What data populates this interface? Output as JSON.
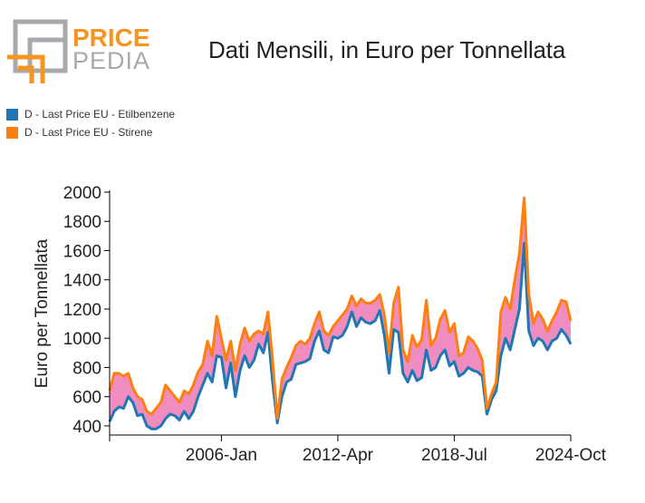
{
  "header": {
    "logo_word1": "PRICE",
    "logo_word2": "PEDIA",
    "title": "Dati Mensili, in Euro per Tonnellata"
  },
  "colors": {
    "etilbenzene": "#1f77b4",
    "stirene": "#ff7f0e",
    "spread_fill": "#f08cc0",
    "logo_gray": "#a7a9ac",
    "logo_orange": "#f7941d"
  },
  "legend": [
    {
      "label": "D - Last Price EU - Etilbenzene",
      "color": "#1f77b4"
    },
    {
      "label": "D - Last Price EU - Stirene",
      "color": "#ff7f0e"
    }
  ],
  "chart_data": {
    "type": "line",
    "title": "Dati Mensili, in Euro per Tonnellata",
    "xlabel": "",
    "ylabel": "Euro per Tonnellata",
    "x_start": "2000-01",
    "x_end": "2024-10",
    "xticks": [
      {
        "date": "2000-01",
        "label": ""
      },
      {
        "date": "2006-01",
        "label": "2006-Jan"
      },
      {
        "date": "2012-04",
        "label": "2012-Apr"
      },
      {
        "date": "2018-07",
        "label": "2018-Jul"
      },
      {
        "date": "2024-10",
        "label": "2024-Oct"
      }
    ],
    "ylim": [
      350,
      2000
    ],
    "yticks": [
      400,
      600,
      800,
      1000,
      1200,
      1400,
      1600,
      1800,
      2000
    ],
    "grid": false,
    "legend_position": "top-left",
    "fill_between": true,
    "series": [
      {
        "name": "D - Last Price EU - Etilbenzene",
        "color": "#1f77b4",
        "points": [
          [
            "2000-01",
            430
          ],
          [
            "2000-04",
            500
          ],
          [
            "2000-07",
            530
          ],
          [
            "2000-10",
            520
          ],
          [
            "2001-01",
            600
          ],
          [
            "2001-04",
            560
          ],
          [
            "2001-07",
            470
          ],
          [
            "2001-10",
            480
          ],
          [
            "2002-01",
            400
          ],
          [
            "2002-04",
            380
          ],
          [
            "2002-07",
            380
          ],
          [
            "2002-10",
            400
          ],
          [
            "2003-01",
            450
          ],
          [
            "2003-04",
            480
          ],
          [
            "2003-07",
            470
          ],
          [
            "2003-10",
            440
          ],
          [
            "2004-01",
            500
          ],
          [
            "2004-04",
            450
          ],
          [
            "2004-07",
            500
          ],
          [
            "2004-10",
            600
          ],
          [
            "2005-01",
            680
          ],
          [
            "2005-04",
            760
          ],
          [
            "2005-07",
            700
          ],
          [
            "2005-10",
            880
          ],
          [
            "2006-01",
            870
          ],
          [
            "2006-04",
            660
          ],
          [
            "2006-07",
            830
          ],
          [
            "2006-10",
            600
          ],
          [
            "2007-01",
            780
          ],
          [
            "2007-04",
            880
          ],
          [
            "2007-07",
            800
          ],
          [
            "2007-10",
            850
          ],
          [
            "2008-01",
            960
          ],
          [
            "2008-04",
            900
          ],
          [
            "2008-07",
            1040
          ],
          [
            "2008-10",
            700
          ],
          [
            "2009-01",
            420
          ],
          [
            "2009-04",
            600
          ],
          [
            "2009-07",
            700
          ],
          [
            "2009-10",
            720
          ],
          [
            "2010-01",
            820
          ],
          [
            "2010-04",
            830
          ],
          [
            "2010-07",
            840
          ],
          [
            "2010-10",
            860
          ],
          [
            "2011-01",
            980
          ],
          [
            "2011-04",
            1050
          ],
          [
            "2011-07",
            920
          ],
          [
            "2011-10",
            900
          ],
          [
            "2012-01",
            1010
          ],
          [
            "2012-04",
            1000
          ],
          [
            "2012-07",
            1020
          ],
          [
            "2012-10",
            1080
          ],
          [
            "2013-01",
            1180
          ],
          [
            "2013-04",
            1080
          ],
          [
            "2013-07",
            1140
          ],
          [
            "2013-10",
            1110
          ],
          [
            "2014-01",
            1100
          ],
          [
            "2014-04",
            1120
          ],
          [
            "2014-07",
            1190
          ],
          [
            "2014-10",
            1020
          ],
          [
            "2015-01",
            760
          ],
          [
            "2015-04",
            1060
          ],
          [
            "2015-07",
            1040
          ],
          [
            "2015-10",
            760
          ],
          [
            "2016-01",
            700
          ],
          [
            "2016-04",
            780
          ],
          [
            "2016-07",
            710
          ],
          [
            "2016-10",
            730
          ],
          [
            "2017-01",
            920
          ],
          [
            "2017-04",
            780
          ],
          [
            "2017-07",
            800
          ],
          [
            "2017-10",
            880
          ],
          [
            "2018-01",
            920
          ],
          [
            "2018-04",
            810
          ],
          [
            "2018-07",
            840
          ],
          [
            "2018-10",
            740
          ],
          [
            "2019-01",
            760
          ],
          [
            "2019-04",
            800
          ],
          [
            "2019-07",
            780
          ],
          [
            "2019-10",
            770
          ],
          [
            "2020-01",
            740
          ],
          [
            "2020-04",
            480
          ],
          [
            "2020-07",
            580
          ],
          [
            "2020-10",
            640
          ],
          [
            "2021-01",
            880
          ],
          [
            "2021-04",
            1000
          ],
          [
            "2021-07",
            920
          ],
          [
            "2021-10",
            1060
          ],
          [
            "2022-01",
            1200
          ],
          [
            "2022-04",
            1650
          ],
          [
            "2022-07",
            1050
          ],
          [
            "2022-10",
            950
          ],
          [
            "2023-01",
            1000
          ],
          [
            "2023-04",
            980
          ],
          [
            "2023-07",
            920
          ],
          [
            "2023-10",
            980
          ],
          [
            "2024-01",
            1000
          ],
          [
            "2024-04",
            1060
          ],
          [
            "2024-07",
            1020
          ],
          [
            "2024-10",
            960
          ]
        ]
      },
      {
        "name": "D - Last Price EU - Stirene",
        "color": "#ff7f0e",
        "points": [
          [
            "2000-01",
            640
          ],
          [
            "2000-04",
            760
          ],
          [
            "2000-07",
            760
          ],
          [
            "2000-10",
            740
          ],
          [
            "2001-01",
            760
          ],
          [
            "2001-04",
            660
          ],
          [
            "2001-07",
            600
          ],
          [
            "2001-10",
            580
          ],
          [
            "2002-01",
            500
          ],
          [
            "2002-04",
            480
          ],
          [
            "2002-07",
            520
          ],
          [
            "2002-10",
            560
          ],
          [
            "2003-01",
            680
          ],
          [
            "2003-04",
            640
          ],
          [
            "2003-07",
            600
          ],
          [
            "2003-10",
            560
          ],
          [
            "2004-01",
            640
          ],
          [
            "2004-04",
            620
          ],
          [
            "2004-07",
            680
          ],
          [
            "2004-10",
            770
          ],
          [
            "2005-01",
            820
          ],
          [
            "2005-04",
            980
          ],
          [
            "2005-07",
            880
          ],
          [
            "2005-10",
            1150
          ],
          [
            "2006-01",
            1000
          ],
          [
            "2006-04",
            850
          ],
          [
            "2006-07",
            980
          ],
          [
            "2006-10",
            780
          ],
          [
            "2007-01",
            960
          ],
          [
            "2007-04",
            1070
          ],
          [
            "2007-07",
            980
          ],
          [
            "2007-10",
            1030
          ],
          [
            "2008-01",
            1050
          ],
          [
            "2008-04",
            1030
          ],
          [
            "2008-07",
            1180
          ],
          [
            "2008-10",
            850
          ],
          [
            "2009-01",
            450
          ],
          [
            "2009-04",
            720
          ],
          [
            "2009-07",
            800
          ],
          [
            "2009-10",
            870
          ],
          [
            "2010-01",
            950
          ],
          [
            "2010-04",
            980
          ],
          [
            "2010-07",
            960
          ],
          [
            "2010-10",
            1000
          ],
          [
            "2011-01",
            1100
          ],
          [
            "2011-04",
            1180
          ],
          [
            "2011-07",
            1050
          ],
          [
            "2011-10",
            1020
          ],
          [
            "2012-01",
            1080
          ],
          [
            "2012-04",
            1120
          ],
          [
            "2012-07",
            1160
          ],
          [
            "2012-10",
            1200
          ],
          [
            "2013-01",
            1290
          ],
          [
            "2013-04",
            1220
          ],
          [
            "2013-07",
            1270
          ],
          [
            "2013-10",
            1240
          ],
          [
            "2014-01",
            1240
          ],
          [
            "2014-04",
            1260
          ],
          [
            "2014-07",
            1300
          ],
          [
            "2014-10",
            1160
          ],
          [
            "2015-01",
            900
          ],
          [
            "2015-04",
            1240
          ],
          [
            "2015-07",
            1350
          ],
          [
            "2015-10",
            920
          ],
          [
            "2016-01",
            840
          ],
          [
            "2016-04",
            1020
          ],
          [
            "2016-07",
            940
          ],
          [
            "2016-10",
            990
          ],
          [
            "2017-01",
            1260
          ],
          [
            "2017-04",
            950
          ],
          [
            "2017-07",
            1000
          ],
          [
            "2017-10",
            1130
          ],
          [
            "2018-01",
            1190
          ],
          [
            "2018-04",
            1040
          ],
          [
            "2018-07",
            1100
          ],
          [
            "2018-10",
            880
          ],
          [
            "2019-01",
            900
          ],
          [
            "2019-04",
            1010
          ],
          [
            "2019-07",
            980
          ],
          [
            "2019-10",
            930
          ],
          [
            "2020-01",
            850
          ],
          [
            "2020-04",
            520
          ],
          [
            "2020-07",
            620
          ],
          [
            "2020-10",
            700
          ],
          [
            "2021-01",
            1180
          ],
          [
            "2021-04",
            1280
          ],
          [
            "2021-07",
            1200
          ],
          [
            "2021-10",
            1400
          ],
          [
            "2022-01",
            1580
          ],
          [
            "2022-04",
            1960
          ],
          [
            "2022-07",
            1300
          ],
          [
            "2022-10",
            1100
          ],
          [
            "2023-01",
            1180
          ],
          [
            "2023-04",
            1130
          ],
          [
            "2023-07",
            1050
          ],
          [
            "2023-10",
            1120
          ],
          [
            "2024-01",
            1180
          ],
          [
            "2024-04",
            1260
          ],
          [
            "2024-07",
            1250
          ],
          [
            "2024-10",
            1120
          ]
        ]
      }
    ]
  }
}
